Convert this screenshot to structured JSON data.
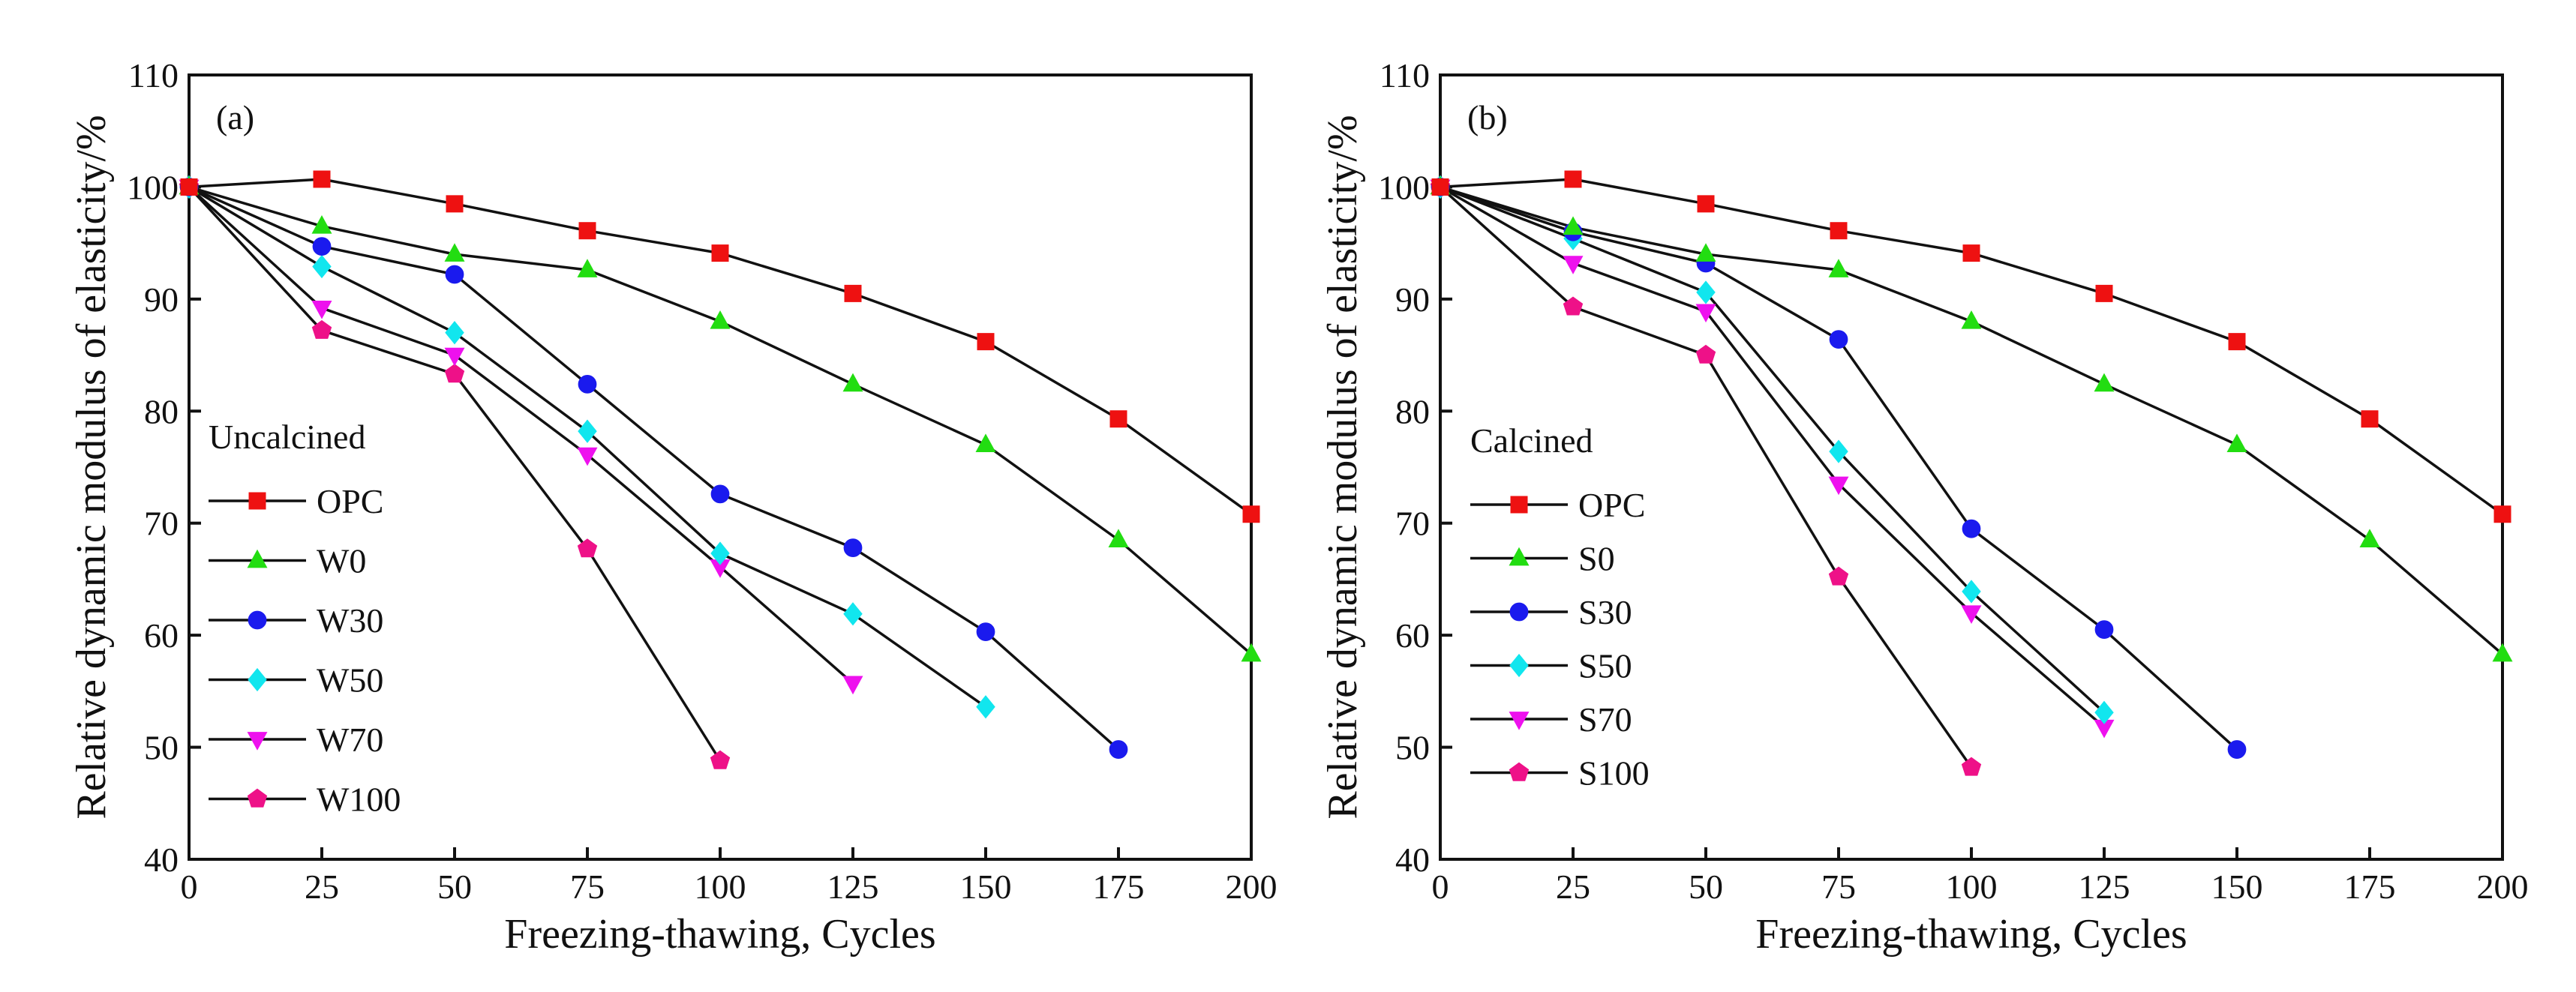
{
  "chart_data": [
    {
      "type": "line",
      "panel_label": "(a)",
      "title": "",
      "xlabel": "Freezing-thawing, Cycles",
      "ylabel": "Relative dynamic modulus of elasticity/%",
      "xlim": [
        0,
        200
      ],
      "ylim": [
        40,
        110
      ],
      "xticks": [
        0,
        25,
        50,
        75,
        100,
        125,
        150,
        175,
        200
      ],
      "yticks": [
        40,
        50,
        60,
        70,
        80,
        90,
        100,
        110
      ],
      "grid": false,
      "legend_title": "Uncalcined",
      "legend_position": "left",
      "series": [
        {
          "name": "OPC",
          "color": "#ee1111",
          "marker": "square",
          "x": [
            0,
            25,
            50,
            75,
            100,
            125,
            150,
            175,
            200
          ],
          "y": [
            100,
            100.7,
            98.5,
            96.1,
            94.1,
            90.5,
            86.2,
            79.3,
            70.8
          ]
        },
        {
          "name": "W0",
          "color": "#22dd11",
          "marker": "triangle-up",
          "x": [
            0,
            25,
            50,
            75,
            100,
            125,
            150,
            175,
            200
          ],
          "y": [
            100,
            96.5,
            94.0,
            92.6,
            88.0,
            82.4,
            77.0,
            68.5,
            58.3
          ]
        },
        {
          "name": "W30",
          "color": "#1a1aee",
          "marker": "circle",
          "x": [
            0,
            25,
            50,
            75,
            100,
            125,
            150,
            175
          ],
          "y": [
            100,
            94.7,
            92.2,
            82.4,
            72.6,
            67.8,
            60.3,
            49.8
          ]
        },
        {
          "name": "W50",
          "color": "#11e6ee",
          "marker": "diamond",
          "x": [
            0,
            25,
            50,
            75,
            100,
            125,
            150
          ],
          "y": [
            100,
            92.9,
            87.0,
            78.2,
            67.3,
            61.9,
            53.6
          ]
        },
        {
          "name": "W70",
          "color": "#ee11ee",
          "marker": "triangle-down",
          "x": [
            0,
            25,
            50,
            75,
            100,
            125
          ],
          "y": [
            100,
            89.2,
            85.0,
            76.1,
            66.1,
            55.7
          ]
        },
        {
          "name": "W100",
          "color": "#ee1188",
          "marker": "pentagon",
          "x": [
            0,
            25,
            50,
            75,
            100
          ],
          "y": [
            100,
            87.2,
            83.3,
            67.7,
            48.8
          ]
        }
      ]
    },
    {
      "type": "line",
      "panel_label": "(b)",
      "title": "",
      "xlabel": "Freezing-thawing, Cycles",
      "ylabel": "Relative dynamic modulus of elasticity/%",
      "xlim": [
        0,
        200
      ],
      "ylim": [
        40,
        110
      ],
      "xticks": [
        0,
        25,
        50,
        75,
        100,
        125,
        150,
        175,
        200
      ],
      "yticks": [
        40,
        50,
        60,
        70,
        80,
        90,
        100,
        110
      ],
      "grid": false,
      "legend_title": "Calcined",
      "legend_position": "left",
      "series": [
        {
          "name": "OPC",
          "color": "#ee1111",
          "marker": "square",
          "x": [
            0,
            25,
            50,
            75,
            100,
            125,
            150,
            175,
            200
          ],
          "y": [
            100,
            100.7,
            98.5,
            96.1,
            94.1,
            90.5,
            86.2,
            79.3,
            70.8
          ]
        },
        {
          "name": "S0",
          "color": "#22dd11",
          "marker": "triangle-up",
          "x": [
            0,
            25,
            50,
            75,
            100,
            125,
            150,
            175,
            200
          ],
          "y": [
            100,
            96.4,
            94.0,
            92.6,
            88.0,
            82.4,
            77.0,
            68.5,
            58.3
          ]
        },
        {
          "name": "S30",
          "color": "#1a1aee",
          "marker": "circle",
          "x": [
            0,
            25,
            50,
            75,
            100,
            125,
            150
          ],
          "y": [
            100,
            96.0,
            93.2,
            86.4,
            69.5,
            60.5,
            49.8
          ]
        },
        {
          "name": "S50",
          "color": "#11e6ee",
          "marker": "diamond",
          "x": [
            0,
            25,
            50,
            75,
            100,
            125
          ],
          "y": [
            100,
            95.4,
            90.6,
            76.4,
            63.9,
            53.1
          ]
        },
        {
          "name": "S70",
          "color": "#ee11ee",
          "marker": "triangle-down",
          "x": [
            0,
            25,
            50,
            75,
            100,
            125
          ],
          "y": [
            100,
            93.2,
            88.9,
            73.5,
            62.0,
            51.8
          ]
        },
        {
          "name": "S100",
          "color": "#ee1188",
          "marker": "pentagon",
          "x": [
            0,
            25,
            50,
            75,
            100
          ],
          "y": [
            100,
            89.3,
            85.0,
            65.2,
            48.2
          ]
        }
      ]
    }
  ]
}
